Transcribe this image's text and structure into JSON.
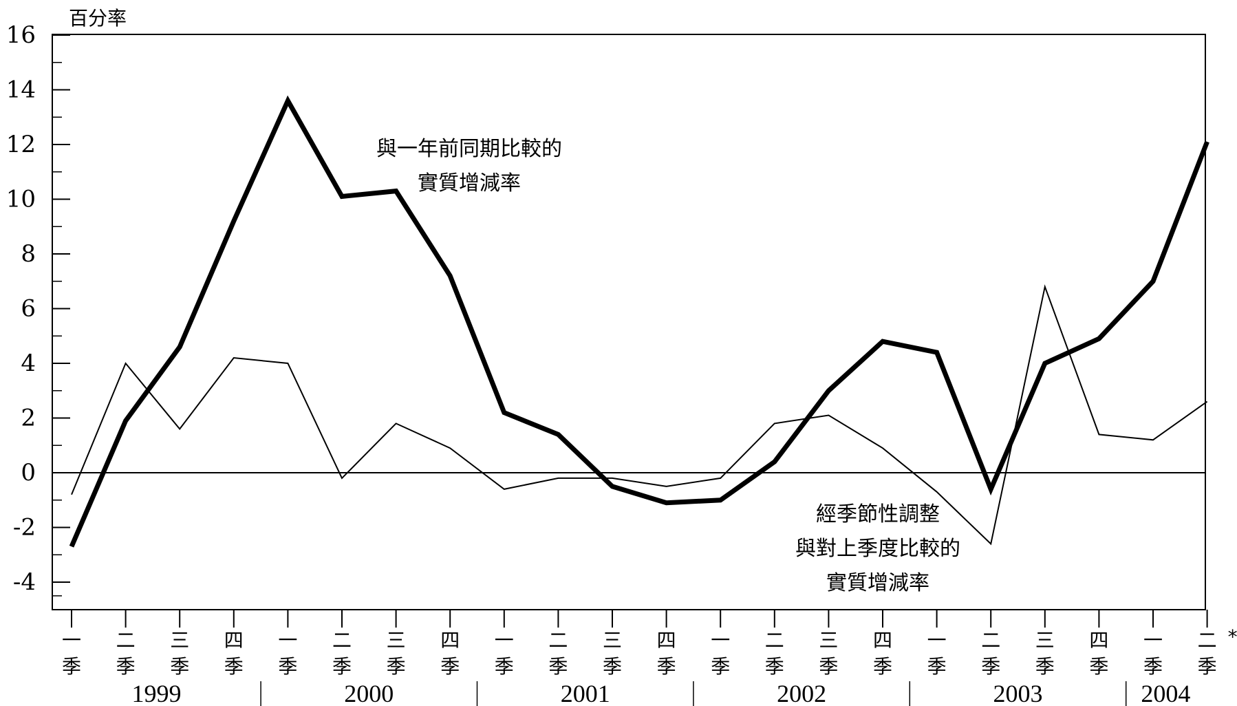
{
  "chart_data": {
    "type": "line",
    "ylabel": "百分率",
    "ylim": [
      -5,
      16
    ],
    "yticks": [
      16,
      14,
      12,
      10,
      8,
      6,
      4,
      2,
      0,
      -2,
      -4
    ],
    "grid": false,
    "quarter_labels": [
      [
        "一",
        "季"
      ],
      [
        "二",
        "季"
      ],
      [
        "三",
        "季"
      ],
      [
        "四",
        "季"
      ],
      [
        "一",
        "季"
      ],
      [
        "二",
        "季"
      ],
      [
        "三",
        "季"
      ],
      [
        "四",
        "季"
      ],
      [
        "一",
        "季"
      ],
      [
        "二",
        "季"
      ],
      [
        "三",
        "季"
      ],
      [
        "四",
        "季"
      ],
      [
        "一",
        "季"
      ],
      [
        "二",
        "季"
      ],
      [
        "三",
        "季"
      ],
      [
        "四",
        "季"
      ],
      [
        "一",
        "季"
      ],
      [
        "二",
        "季"
      ],
      [
        "三",
        "季"
      ],
      [
        "四",
        "季"
      ],
      [
        "一",
        "季"
      ],
      [
        "二",
        "季"
      ]
    ],
    "years": [
      "1999",
      "2000",
      "2001",
      "2002",
      "2003",
      "2004"
    ],
    "last_point_marker": "*",
    "series": [
      {
        "name": "與一年前同期比較的實質增減率",
        "label_lines": [
          "與一年前同期比較的",
          "實質增減率"
        ],
        "style": "thick",
        "values": [
          -2.7,
          1.9,
          4.6,
          9.2,
          13.6,
          10.1,
          10.3,
          7.2,
          2.2,
          1.4,
          -0.5,
          -1.1,
          -1.0,
          0.4,
          3.0,
          4.8,
          4.4,
          -0.6,
          4.0,
          4.9,
          7.0,
          12.1
        ]
      },
      {
        "name": "經季節性調整與對上季度比較的實質增減率",
        "label_lines": [
          "經季節性調整",
          "與對上季度比較的",
          "實質增減率"
        ],
        "style": "thin",
        "values": [
          -0.8,
          4.0,
          1.6,
          4.2,
          4.0,
          -0.2,
          1.8,
          0.9,
          -0.6,
          -0.2,
          -0.2,
          -0.5,
          -0.2,
          1.8,
          2.1,
          0.9,
          -0.7,
          -2.6,
          6.8,
          1.4,
          1.2,
          2.6
        ]
      }
    ]
  }
}
